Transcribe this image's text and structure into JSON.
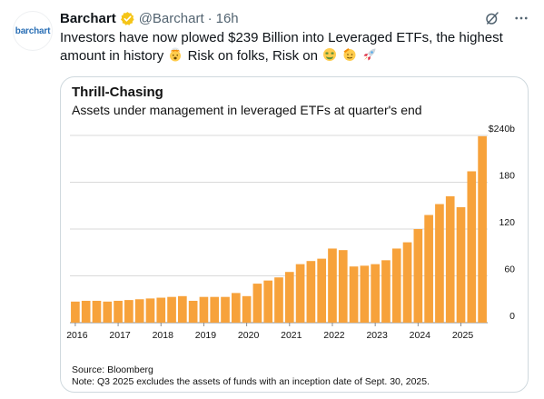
{
  "tweet": {
    "avatar_text": "barchart",
    "author_name": "Barchart",
    "handle": "@Barchart",
    "separator": "·",
    "time": "16h",
    "text_part1": "Investors have now plowed $239 Billion into Leveraged ETFs, the highest amount in history",
    "text_part2": "Risk on folks, Risk on",
    "icons": [
      "verified-badge-icon",
      "grok-icon",
      "more-icon",
      "exploding-head-emoji",
      "money-mouth-emoji",
      "saluting-face-emoji",
      "rocket-emoji"
    ],
    "verified_color": "#f5c518"
  },
  "chart_data": {
    "type": "bar",
    "title": "Thrill-Chasing",
    "subtitle": "Assets under management in leveraged ETFs at quarter's end",
    "bar_color": "#f7a23b",
    "ylim": [
      0,
      240
    ],
    "yticks": [
      0,
      60,
      120,
      180,
      240
    ],
    "ytick_labels": [
      "0",
      "60",
      "120",
      "180",
      "$240b"
    ],
    "grid": true,
    "x_labels": [
      "2016",
      "2017",
      "2018",
      "2019",
      "2020",
      "2021",
      "2022",
      "2023",
      "2024",
      "2025"
    ],
    "categories": [
      "2016Q1",
      "2016Q2",
      "2016Q3",
      "2016Q4",
      "2017Q1",
      "2017Q2",
      "2017Q3",
      "2017Q4",
      "2018Q1",
      "2018Q2",
      "2018Q3",
      "2018Q4",
      "2019Q1",
      "2019Q2",
      "2019Q3",
      "2019Q4",
      "2020Q1",
      "2020Q2",
      "2020Q3",
      "2020Q4",
      "2021Q1",
      "2021Q2",
      "2021Q3",
      "2021Q4",
      "2022Q1",
      "2022Q2",
      "2022Q3",
      "2022Q4",
      "2023Q1",
      "2023Q2",
      "2023Q3",
      "2023Q4",
      "2024Q1",
      "2024Q2",
      "2024Q3",
      "2024Q4",
      "2025Q1",
      "2025Q2",
      "2025Q3"
    ],
    "values": [
      27,
      28,
      28,
      27,
      28,
      29,
      30,
      31,
      32,
      33,
      34,
      28,
      33,
      33,
      33,
      38,
      34,
      50,
      54,
      58,
      65,
      75,
      79,
      82,
      95,
      93,
      72,
      73,
      75,
      80,
      95,
      103,
      120,
      138,
      152,
      162,
      148,
      194,
      239
    ]
  },
  "footnotes": {
    "source": "Source: Bloomberg",
    "note": "Note: Q3 2025 excludes the assets of funds with an inception date of Sept. 30, 2025."
  }
}
